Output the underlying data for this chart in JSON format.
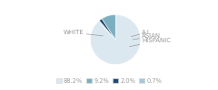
{
  "labels": [
    "WHITE",
    "HISPANIC",
    "ASIAN",
    "A.I."
  ],
  "values": [
    88.2,
    9.2,
    2.0,
    0.7
  ],
  "colors": [
    "#dce8f0",
    "#7bafc0",
    "#1f4870",
    "#a8c8d8"
  ],
  "legend_labels": [
    "88.2%",
    "9.2%",
    "2.0%",
    "0.7%"
  ],
  "legend_colors": [
    "#dce8f0",
    "#7bafc0",
    "#1f4870",
    "#a8c8d8"
  ],
  "text_color": "#999999",
  "startangle": 90,
  "bg_color": "#ffffff",
  "white_label": "WHITE",
  "ai_label": "A.I.",
  "asian_label": "ASIAN",
  "hispanic_label": "HISPANIC"
}
